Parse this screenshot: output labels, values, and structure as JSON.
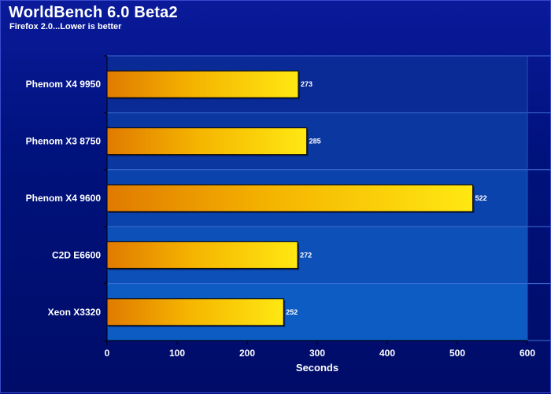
{
  "chart_data": {
    "type": "bar",
    "orientation": "horizontal",
    "title": "WorldBench 6.0 Beta2",
    "subtitle": "Firefox 2.0...Lower is better",
    "xlabel": "Seconds",
    "ylabel": "",
    "categories": [
      "Phenom X4 9950",
      "Phenom X3 8750",
      "Phenom X4 9600",
      "C2D E6600",
      "Xeon X3320"
    ],
    "values": [
      273,
      285,
      522,
      272,
      252
    ],
    "xlim": [
      0,
      600
    ],
    "ticks": [
      "0",
      "100",
      "200",
      "300",
      "400",
      "500",
      "600"
    ],
    "grid": true,
    "legend": "none",
    "colors": {
      "bar_start": "#e07a00",
      "bar_mid": "#f5b800",
      "bar_end": "#ffe810",
      "background": "#00127c",
      "plot_band_light": "#0c4fbf",
      "plot_band_dark": "#0a2f9e"
    }
  }
}
